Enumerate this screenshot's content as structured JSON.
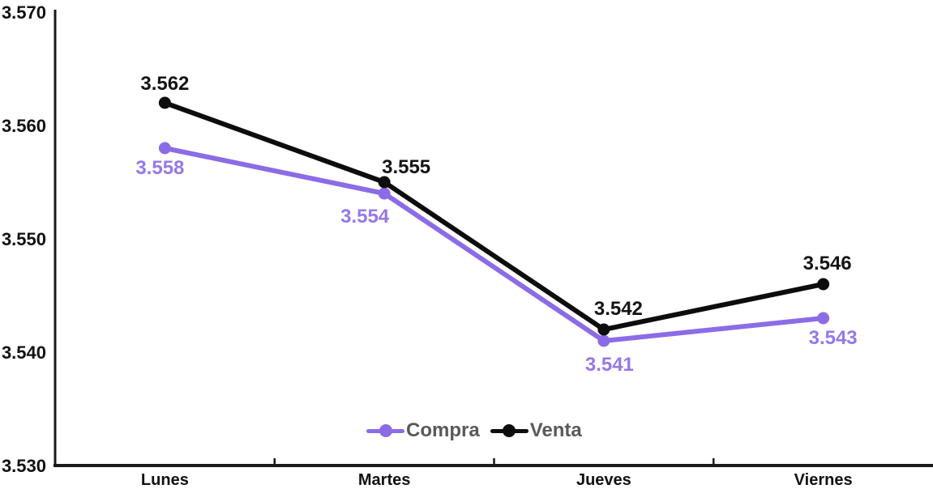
{
  "chart_data": {
    "type": "line",
    "title": "",
    "xlabel": "",
    "ylabel": "",
    "categories": [
      "Lunes",
      "Martes",
      "Jueves",
      "Viernes"
    ],
    "series": [
      {
        "name": "Compra",
        "color": "#8B6CE6",
        "label_color": "#9678E8",
        "values": [
          3.558,
          3.554,
          3.541,
          3.543
        ]
      },
      {
        "name": "Venta",
        "color": "#0D0D0D",
        "label_color": "#141414",
        "values": [
          3.562,
          3.555,
          3.542,
          3.546
        ]
      }
    ],
    "ylim": [
      3.53,
      3.57
    ],
    "ytick_step": 0.01,
    "y_tick_labels": [
      "3.530",
      "3.540",
      "3.550",
      "3.560",
      "3.570"
    ],
    "x_tick_labels": [
      "Lunes",
      "Martes",
      "Jueves",
      "Viernes"
    ],
    "data_labels": {
      "Compra": [
        "3.558",
        "3.554",
        "3.541",
        "3.543"
      ],
      "Venta": [
        "3.562",
        "3.555",
        "3.542",
        "3.546"
      ]
    },
    "grid": false,
    "legend_position": "bottom-center",
    "axis_color": "#1A1A1A",
    "tick_label_color": "#111111",
    "legend_text_color": "#595959",
    "background_color": "#FFFFFF",
    "label_offsets": {
      "Compra": [
        [
          -6,
          32
        ],
        [
          -24,
          36
        ],
        [
          7,
          37
        ],
        [
          12,
          32
        ]
      ],
      "Venta": [
        [
          0,
          -16
        ],
        [
          27,
          -11
        ],
        [
          18,
          -18
        ],
        [
          5,
          -18
        ]
      ]
    }
  },
  "legend": {
    "items": [
      {
        "label": "Compra"
      },
      {
        "label": "Venta"
      }
    ]
  }
}
